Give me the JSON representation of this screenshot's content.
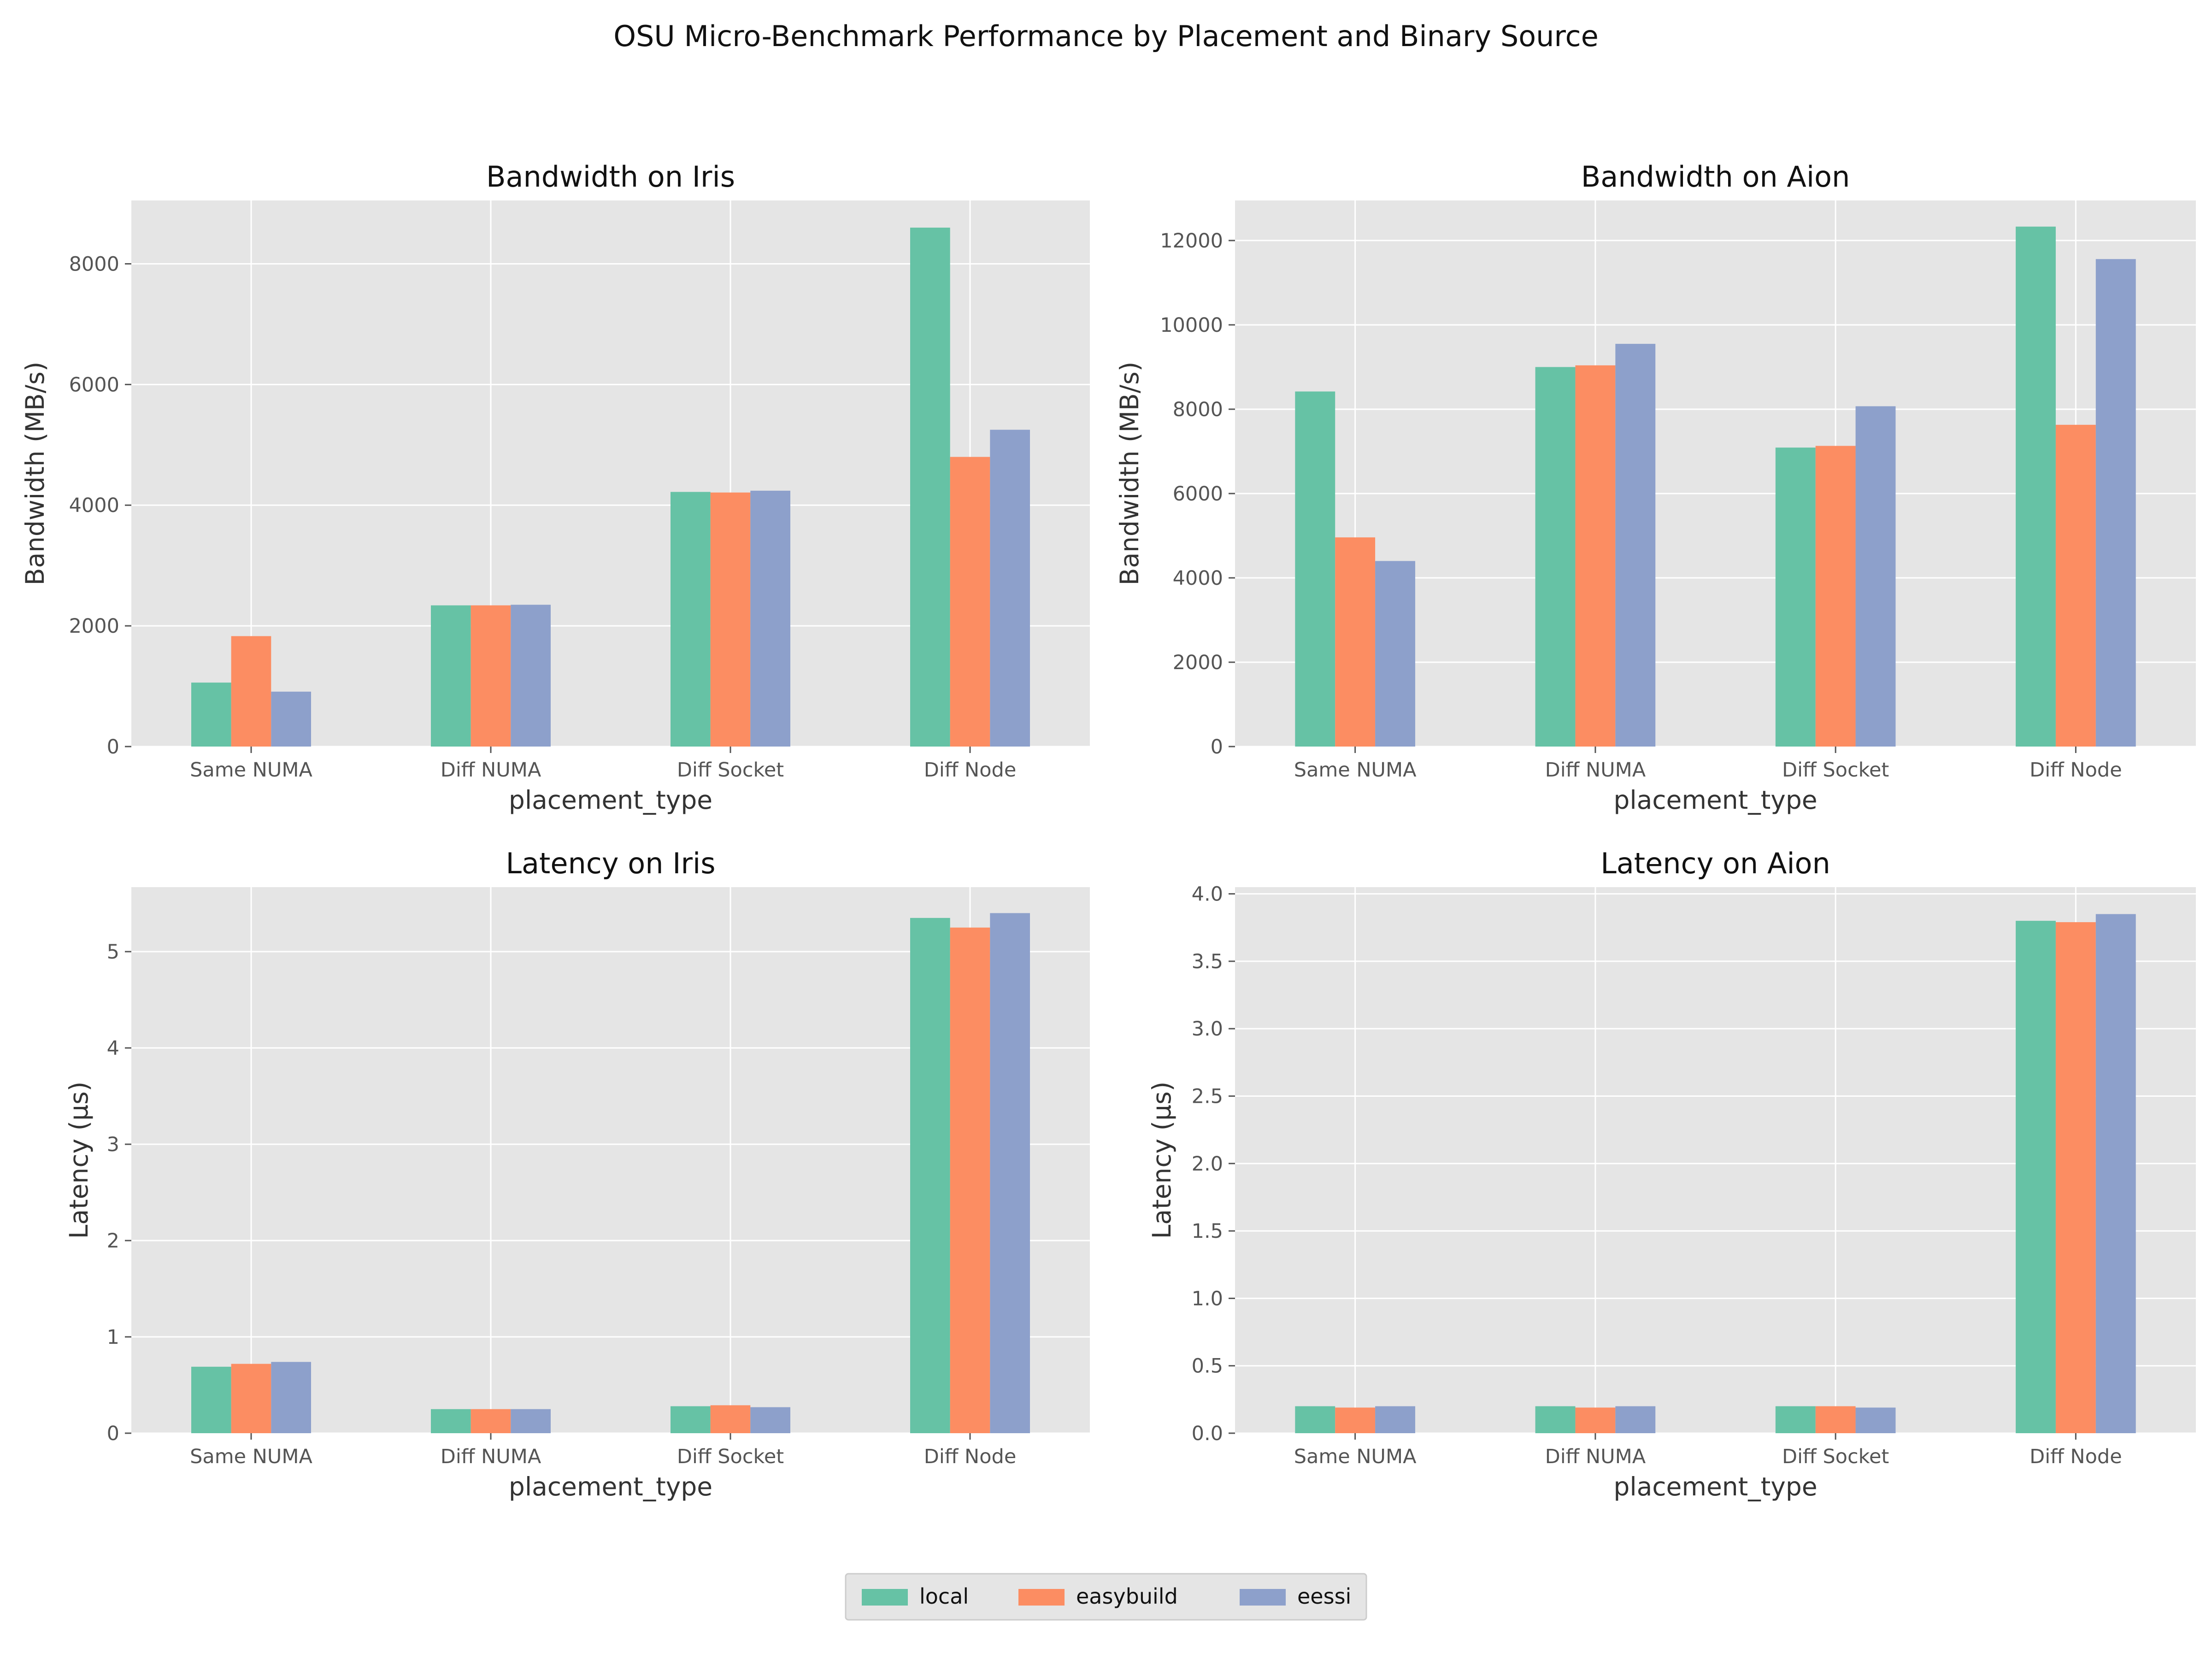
{
  "page": {
    "title": "OSU Micro-Benchmark Performance by Placement and Binary Source"
  },
  "colors": {
    "panel_bg": "#e5e5e5",
    "grid": "#ffffff",
    "tick_text": "#555555",
    "label_text": "#333333",
    "local": "#66c2a5",
    "easybuild": "#fc8d62",
    "eessi": "#8da0cb"
  },
  "legend": {
    "placement": "bottom-center",
    "entries": [
      {
        "label": "local",
        "color": "#66c2a5"
      },
      {
        "label": "easybuild",
        "color": "#fc8d62"
      },
      {
        "label": "eessi",
        "color": "#8da0cb"
      }
    ]
  },
  "chart_data": [
    {
      "type": "bar",
      "title": "Bandwidth on Iris",
      "xlabel": "placement_type",
      "ylabel": "Bandwidth (MB/s)",
      "categories": [
        "Same NUMA",
        "Diff NUMA",
        "Diff Socket",
        "Diff Node"
      ],
      "ylim": [
        0,
        9050
      ],
      "yticks": [
        0,
        2000,
        4000,
        6000,
        8000
      ],
      "ytick_labels": [
        "0",
        "2000",
        "4000",
        "6000",
        "8000"
      ],
      "grid": true,
      "series": [
        {
          "name": "local",
          "values": [
            1060,
            2340,
            4220,
            8600
          ]
        },
        {
          "name": "easybuild",
          "values": [
            1830,
            2340,
            4210,
            4800
          ]
        },
        {
          "name": "eessi",
          "values": [
            910,
            2350,
            4240,
            5250
          ]
        }
      ]
    },
    {
      "type": "bar",
      "title": "Bandwidth on Aion",
      "xlabel": "placement_type",
      "ylabel": "Bandwidth (MB/s)",
      "categories": [
        "Same NUMA",
        "Diff NUMA",
        "Diff Socket",
        "Diff Node"
      ],
      "ylim": [
        0,
        12950
      ],
      "yticks": [
        0,
        2000,
        4000,
        6000,
        8000,
        10000,
        12000
      ],
      "ytick_labels": [
        "0",
        "2000",
        "4000",
        "6000",
        "8000",
        "10000",
        "12000"
      ],
      "grid": true,
      "series": [
        {
          "name": "local",
          "values": [
            8420,
            9000,
            7090,
            12330
          ]
        },
        {
          "name": "easybuild",
          "values": [
            4960,
            9040,
            7130,
            7630
          ]
        },
        {
          "name": "eessi",
          "values": [
            4400,
            9550,
            8070,
            11560
          ]
        }
      ]
    },
    {
      "type": "bar",
      "title": "Latency on Iris",
      "xlabel": "placement_type",
      "ylabel": "Latency (µs)",
      "categories": [
        "Same NUMA",
        "Diff NUMA",
        "Diff Socket",
        "Diff Node"
      ],
      "ylim": [
        0,
        5.67
      ],
      "yticks": [
        0,
        1,
        2,
        3,
        4,
        5
      ],
      "ytick_labels": [
        "0",
        "1",
        "2",
        "3",
        "4",
        "5"
      ],
      "grid": true,
      "series": [
        {
          "name": "local",
          "values": [
            0.69,
            0.25,
            0.28,
            5.35
          ]
        },
        {
          "name": "easybuild",
          "values": [
            0.72,
            0.25,
            0.29,
            5.25
          ]
        },
        {
          "name": "eessi",
          "values": [
            0.74,
            0.25,
            0.27,
            5.4
          ]
        }
      ]
    },
    {
      "type": "bar",
      "title": "Latency on Aion",
      "xlabel": "placement_type",
      "ylabel": "Latency (µs)",
      "categories": [
        "Same NUMA",
        "Diff NUMA",
        "Diff Socket",
        "Diff Node"
      ],
      "ylim": [
        0,
        4.05
      ],
      "yticks": [
        0,
        0.5,
        1,
        1.5,
        2,
        2.5,
        3,
        3.5,
        4
      ],
      "ytick_labels": [
        "0.0",
        "0.5",
        "1.0",
        "1.5",
        "2.0",
        "2.5",
        "3.0",
        "3.5",
        "4.0"
      ],
      "grid": true,
      "series": [
        {
          "name": "local",
          "values": [
            0.2,
            0.2,
            0.2,
            3.8
          ]
        },
        {
          "name": "easybuild",
          "values": [
            0.19,
            0.19,
            0.2,
            3.79
          ]
        },
        {
          "name": "eessi",
          "values": [
            0.2,
            0.2,
            0.19,
            3.85
          ]
        }
      ]
    }
  ]
}
